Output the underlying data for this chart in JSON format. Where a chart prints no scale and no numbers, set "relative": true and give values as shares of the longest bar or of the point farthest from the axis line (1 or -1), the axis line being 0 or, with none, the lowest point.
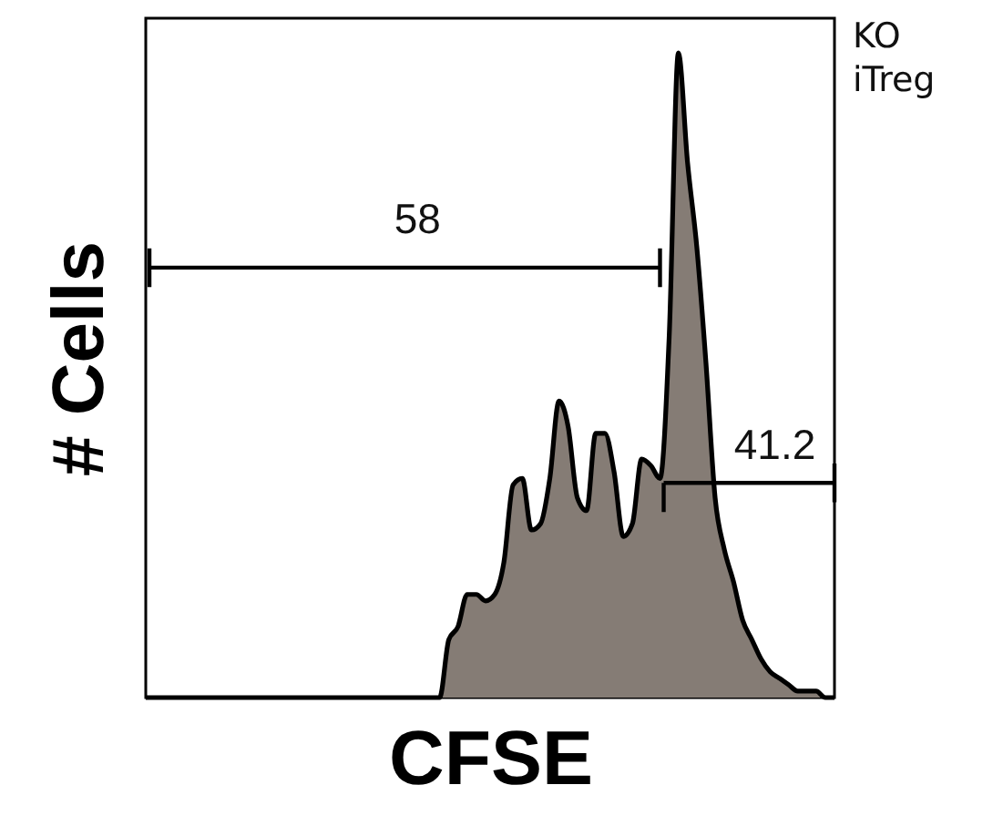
{
  "chart_data": {
    "type": "area",
    "relative": true,
    "xlabel": "CFSE",
    "ylabel": "# Cells",
    "tick_labels": false,
    "annotations": [
      "58",
      "41.2",
      "KO iTreg"
    ],
    "categories": [
      null,
      null,
      null,
      null,
      null,
      null,
      null,
      null,
      null,
      null,
      null,
      null,
      null,
      null,
      null,
      null,
      null,
      null,
      null,
      null,
      null,
      null,
      null,
      null,
      null,
      null,
      null,
      null,
      null,
      null,
      null,
      null,
      null,
      null,
      null,
      null,
      null,
      null,
      null,
      null,
      null,
      null,
      null,
      null,
      null,
      null,
      null,
      null,
      null,
      null,
      null,
      null,
      null,
      null,
      null,
      null,
      null,
      null,
      null,
      null,
      null,
      null,
      null,
      null,
      null,
      null,
      null,
      null,
      null,
      null,
      null,
      null,
      null,
      null,
      null,
      null
    ],
    "series": [
      {
        "color": "#857c75",
        "values": [
          0,
          0,
          0,
          0,
          0,
          0,
          0,
          0,
          0,
          0,
          0,
          0,
          0,
          0,
          0,
          0,
          0,
          0,
          0,
          0,
          0,
          0,
          0,
          0,
          0,
          0,
          0,
          0,
          0,
          0,
          0,
          0,
          0,
          0.09,
          0.11,
          0.16,
          0.16,
          0.15,
          0.16,
          0.21,
          0.33,
          0.34,
          0.26,
          0.27,
          0.34,
          0.46,
          0.42,
          0.31,
          0.29,
          0.41,
          0.41,
          0.35,
          0.25,
          0.27,
          0.37,
          0.36,
          0.34,
          0.56,
          1.0,
          0.83,
          0.7,
          0.52,
          0.31,
          0.23,
          0.18,
          0.12,
          0.09,
          0.06,
          0.04,
          0.03,
          0.02,
          0.01,
          0.01,
          0.01,
          0,
          0
        ]
      }
    ]
  }
}
